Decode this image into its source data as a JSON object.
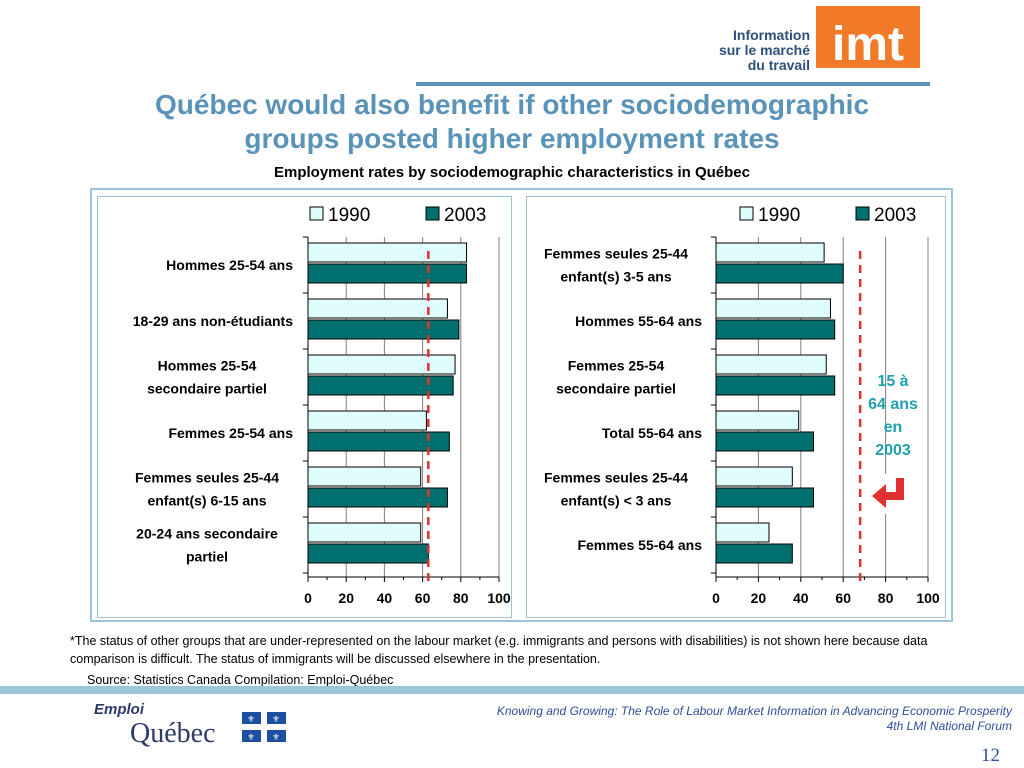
{
  "header": {
    "logo_lines": [
      "Information",
      "sur le marché",
      "du travail"
    ],
    "logo_mark": "imt"
  },
  "title_lines": [
    "Québec would also benefit if other sociodemographic",
    "groups posted higher employment rates"
  ],
  "subtitle": "Employment rates by sociodemographic characteristics in Québec",
  "colors": {
    "series_1990": "#dffcfc",
    "series_2003": "#006f6f",
    "reference_line": "#e03030",
    "note": "#1fa0ad",
    "arrow": "#e03030",
    "title": "#5a93b8"
  },
  "chart_data": [
    {
      "type": "bar",
      "orientation": "horizontal",
      "categories": [
        [
          "Hommes 25-54 ans"
        ],
        [
          "18-29 ans non-étudiants"
        ],
        [
          "Hommes 25-54",
          "secondaire partiel"
        ],
        [
          "Femmes 25-54 ans"
        ],
        [
          "Femmes seules 25-44",
          "enfant(s) 6-15 ans"
        ],
        [
          "20-24 ans secondaire",
          "partiel"
        ]
      ],
      "series": [
        {
          "name": "1990",
          "values": [
            83,
            73,
            77,
            62,
            59,
            59
          ]
        },
        {
          "name": "2003",
          "values": [
            83,
            79,
            76,
            74,
            73,
            63
          ]
        }
      ],
      "xlim": [
        0,
        100
      ],
      "xticks": [
        "0",
        "20",
        "40",
        "60",
        "80",
        "100"
      ],
      "reference_line": 63,
      "grid": true,
      "legend": "top"
    },
    {
      "type": "bar",
      "orientation": "horizontal",
      "categories": [
        [
          "Femmes seules 25-44",
          "enfant(s) 3-5 ans"
        ],
        [
          "Hommes 55-64 ans"
        ],
        [
          "Femmes 25-54",
          "secondaire partiel"
        ],
        [
          "Total 55-64 ans"
        ],
        [
          "Femmes seules 25-44",
          "enfant(s) < 3 ans"
        ],
        [
          "Femmes 55-64 ans"
        ]
      ],
      "series": [
        {
          "name": "1990",
          "values": [
            51,
            54,
            52,
            39,
            36,
            25
          ]
        },
        {
          "name": "2003",
          "values": [
            60,
            56,
            56,
            46,
            46,
            36
          ]
        }
      ],
      "xlim": [
        0,
        100
      ],
      "xticks": [
        "0",
        "20",
        "40",
        "60",
        "80",
        "100"
      ],
      "reference_line": 68,
      "grid": true,
      "legend": "top"
    }
  ],
  "note_lines": [
    "15 à",
    "64 ans",
    "en",
    "2003"
  ],
  "footnote": "*The status of other groups that are under-represented on the labour market (e.g. immigrants and persons with disabilities) is not shown here because data comparison is difficult. The status of immigrants will be discussed elsewhere in the presentation.",
  "source": "Source: Statistics Canada  Compilation:  Emploi-Québec",
  "footer": {
    "logo_top": "Emploi",
    "logo_bottom": "Québec",
    "line1": "Knowing and Growing: The Role of Labour Market Information in Advancing Economic Prosperity",
    "line2": "4th LMI National Forum",
    "page_number": "12"
  }
}
